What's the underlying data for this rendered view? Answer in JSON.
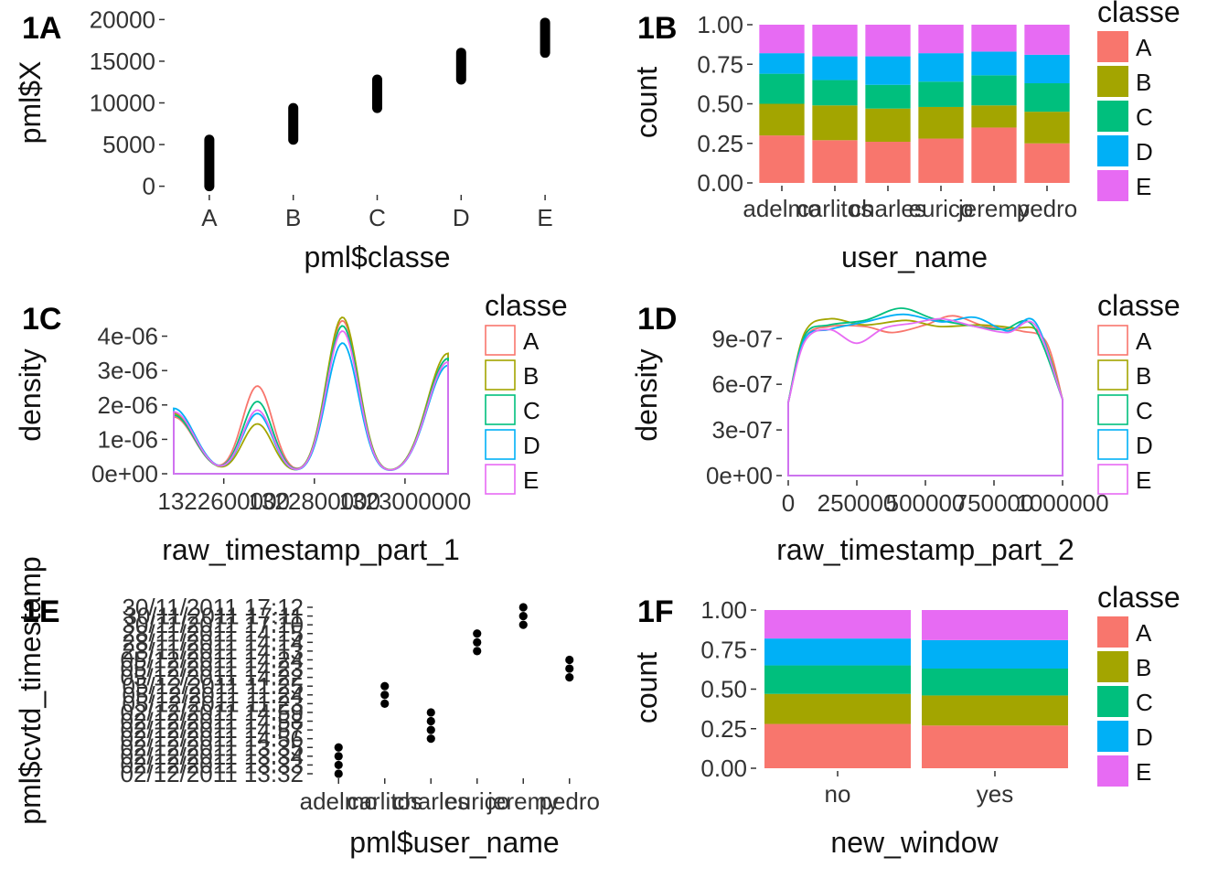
{
  "chart_data": [
    {
      "panel": "1A",
      "type": "scatter",
      "xlabel": "pml$classe",
      "ylabel": "pml$X",
      "categories": [
        "A",
        "B",
        "C",
        "D",
        "E"
      ],
      "yticks": [
        0,
        5000,
        10000,
        15000,
        20000
      ],
      "ylim": [
        -700,
        20700
      ],
      "ranges": [
        {
          "x": "A",
          "ymin": 1,
          "ymax": 5580
        },
        {
          "x": "B",
          "ymin": 5581,
          "ymax": 9377
        },
        {
          "x": "C",
          "ymin": 9378,
          "ymax": 12799
        },
        {
          "x": "D",
          "ymin": 12800,
          "ymax": 16015
        },
        {
          "x": "E",
          "ymin": 16016,
          "ymax": 19622
        }
      ]
    },
    {
      "panel": "1B",
      "type": "bar",
      "stacked": "fill",
      "xlabel": "user_name",
      "ylabel": "count",
      "categories": [
        "adelmo",
        "carlitos",
        "charles",
        "eurico",
        "jeremy",
        "pedro"
      ],
      "yticks": [
        "0.00",
        "0.25",
        "0.50",
        "0.75",
        "1.00"
      ],
      "ylim": [
        0,
        1
      ],
      "legend_title": "classe",
      "series": [
        {
          "name": "A",
          "color": "#F8766D",
          "values": [
            0.3,
            0.27,
            0.26,
            0.28,
            0.35,
            0.25
          ]
        },
        {
          "name": "B",
          "color": "#A3A500",
          "values": [
            0.2,
            0.22,
            0.21,
            0.2,
            0.14,
            0.2
          ]
        },
        {
          "name": "C",
          "color": "#00BF7D",
          "values": [
            0.19,
            0.16,
            0.15,
            0.16,
            0.19,
            0.18
          ]
        },
        {
          "name": "D",
          "color": "#00B0F6",
          "values": [
            0.13,
            0.15,
            0.18,
            0.18,
            0.15,
            0.18
          ]
        },
        {
          "name": "E",
          "color": "#E76BF3",
          "values": [
            0.18,
            0.2,
            0.2,
            0.18,
            0.17,
            0.19
          ]
        }
      ]
    },
    {
      "panel": "1C",
      "type": "line",
      "xlabel": "raw_timestamp_part_1",
      "ylabel": "density",
      "xticks": [
        "1322600000",
        "1322800000",
        "1323000000"
      ],
      "xtick_values": [
        1322600000,
        1322800000,
        1323000000
      ],
      "xlim": [
        1322489605,
        1323095081
      ],
      "yticks": [
        "0e+00",
        "1e-06",
        "2e-06",
        "3e-06",
        "4e-06"
      ],
      "ytick_values": [
        0,
        1e-06,
        2e-06,
        3e-06,
        4e-06
      ],
      "ylim": [
        0,
        4.6e-06
      ],
      "legend_title": "classe",
      "series": [
        {
          "name": "A",
          "color": "#F8766D",
          "left": 1.65e-06,
          "peak1": 2.55e-06,
          "peak2": 4.45e-06,
          "right": 3.35e-06
        },
        {
          "name": "B",
          "color": "#A3A500",
          "left": 1.75e-06,
          "peak1": 1.45e-06,
          "peak2": 4.55e-06,
          "right": 3.5e-06
        },
        {
          "name": "C",
          "color": "#00BF7D",
          "left": 1.7e-06,
          "peak1": 2.1e-06,
          "peak2": 4.3e-06,
          "right": 3.35e-06
        },
        {
          "name": "D",
          "color": "#00B0F6",
          "left": 1.9e-06,
          "peak1": 1.75e-06,
          "peak2": 3.8e-06,
          "right": 3.15e-06
        },
        {
          "name": "E",
          "color": "#E76BF3",
          "left": 1.8e-06,
          "peak1": 1.85e-06,
          "peak2": 4.15e-06,
          "right": 3.25e-06
        }
      ]
    },
    {
      "panel": "1D",
      "type": "line",
      "xlabel": "raw_timestamp_part_2",
      "ylabel": "density",
      "xticks": [
        "0",
        "250000",
        "500000",
        "750000",
        "1000000"
      ],
      "xtick_values": [
        0,
        250000,
        500000,
        750000,
        1000000
      ],
      "xlim": [
        0,
        1000000
      ],
      "yticks": [
        "0e+00",
        "3e-07",
        "6e-07",
        "9e-07"
      ],
      "ytick_values": [
        0,
        3e-07,
        6e-07,
        9e-07
      ],
      "ylim": [
        0,
        1.1e-06
      ],
      "legend_title": "classe",
      "series": [
        {
          "name": "A",
          "color": "#F8766D",
          "points": [
            [
              0,
              4.8e-07
            ],
            [
              60000,
              9e-07
            ],
            [
              150000,
              9.8e-07
            ],
            [
              280000,
              9.8e-07
            ],
            [
              380000,
              9.4e-07
            ],
            [
              500000,
              9.9e-07
            ],
            [
              600000,
              1.05e-06
            ],
            [
              720000,
              9.8e-07
            ],
            [
              850000,
              9.5e-07
            ],
            [
              940000,
              8.8e-07
            ],
            [
              1000000,
              5e-07
            ]
          ]
        },
        {
          "name": "B",
          "color": "#A3A500",
          "points": [
            [
              0,
              4.8e-07
            ],
            [
              60000,
              9.4e-07
            ],
            [
              150000,
              1.03e-06
            ],
            [
              280000,
              9.9e-07
            ],
            [
              430000,
              1.02e-06
            ],
            [
              550000,
              9.8e-07
            ],
            [
              700000,
              9.9e-07
            ],
            [
              820000,
              9.7e-07
            ],
            [
              920000,
              9.3e-07
            ],
            [
              1000000,
              5e-07
            ]
          ]
        },
        {
          "name": "C",
          "color": "#00BF7D",
          "points": [
            [
              0,
              4.8e-07
            ],
            [
              60000,
              9.2e-07
            ],
            [
              150000,
              9.9e-07
            ],
            [
              280000,
              1.02e-06
            ],
            [
              410000,
              1.1e-06
            ],
            [
              530000,
              1.03e-06
            ],
            [
              650000,
              9.9e-07
            ],
            [
              780000,
              9.6e-07
            ],
            [
              890000,
              9.9e-07
            ],
            [
              1000000,
              5e-07
            ]
          ]
        },
        {
          "name": "D",
          "color": "#00B0F6",
          "points": [
            [
              0,
              4.8e-07
            ],
            [
              60000,
              9e-07
            ],
            [
              150000,
              9.6e-07
            ],
            [
              280000,
              1.01e-06
            ],
            [
              420000,
              1.06e-06
            ],
            [
              560000,
              1.01e-06
            ],
            [
              680000,
              1.04e-06
            ],
            [
              800000,
              9.5e-07
            ],
            [
              900000,
              1.01e-06
            ],
            [
              1000000,
              5e-07
            ]
          ]
        },
        {
          "name": "E",
          "color": "#E76BF3",
          "points": [
            [
              0,
              4.8e-07
            ],
            [
              60000,
              8.8e-07
            ],
            [
              150000,
              9.6e-07
            ],
            [
              250000,
              8.7e-07
            ],
            [
              350000,
              9.7e-07
            ],
            [
              450000,
              1e-06
            ],
            [
              560000,
              1.03e-06
            ],
            [
              680000,
              9.8e-07
            ],
            [
              800000,
              9.4e-07
            ],
            [
              900000,
              9.9e-07
            ],
            [
              1000000,
              5e-07
            ]
          ]
        }
      ]
    },
    {
      "panel": "1E",
      "type": "scatter",
      "xlabel": "pml$user_name",
      "ylabel": "pml$cvtd_timestamp",
      "categories": [
        "adelmo",
        "carlitos",
        "charles",
        "eurico",
        "jeremy",
        "pedro"
      ],
      "yticks": [
        "02/12/2011 13:32",
        "02/12/2011 13:33",
        "02/12/2011 13:34",
        "02/12/2011 13:35",
        "02/12/2011 14:56",
        "02/12/2011 14:57",
        "02/12/2011 14:58",
        "02/12/2011 14:59",
        "05/12/2011 11:23",
        "05/12/2011 11:24",
        "05/12/2011 11:25",
        "05/12/2011 14:22",
        "05/12/2011 14:23",
        "05/12/2011 14:24",
        "28/11/2011 14:13",
        "28/11/2011 14:14",
        "28/11/2011 14:15",
        "30/11/2011 17:10",
        "30/11/2011 17:11",
        "30/11/2011 17:12"
      ],
      "points": [
        {
          "x": "adelmo",
          "y": [
            "02/12/2011 13:32",
            "02/12/2011 13:33",
            "02/12/2011 13:34",
            "02/12/2011 13:35"
          ]
        },
        {
          "x": "carlitos",
          "y": [
            "05/12/2011 11:23",
            "05/12/2011 11:24",
            "05/12/2011 11:25"
          ]
        },
        {
          "x": "charles",
          "y": [
            "02/12/2011 14:56",
            "02/12/2011 14:57",
            "02/12/2011 14:58",
            "02/12/2011 14:59"
          ]
        },
        {
          "x": "eurico",
          "y": [
            "28/11/2011 14:13",
            "28/11/2011 14:14",
            "28/11/2011 14:15"
          ]
        },
        {
          "x": "jeremy",
          "y": [
            "30/11/2011 17:10",
            "30/11/2011 17:11",
            "30/11/2011 17:12"
          ]
        },
        {
          "x": "pedro",
          "y": [
            "05/12/2011 14:22",
            "05/12/2011 14:23",
            "05/12/2011 14:24"
          ]
        }
      ]
    },
    {
      "panel": "1F",
      "type": "bar",
      "stacked": "fill",
      "xlabel": "new_window",
      "ylabel": "count",
      "categories": [
        "no",
        "yes"
      ],
      "yticks": [
        "0.00",
        "0.25",
        "0.50",
        "0.75",
        "1.00"
      ],
      "ylim": [
        0,
        1
      ],
      "legend_title": "classe",
      "series": [
        {
          "name": "A",
          "color": "#F8766D",
          "values": [
            0.28,
            0.27
          ]
        },
        {
          "name": "B",
          "color": "#A3A500",
          "values": [
            0.19,
            0.19
          ]
        },
        {
          "name": "C",
          "color": "#00BF7D",
          "values": [
            0.18,
            0.17
          ]
        },
        {
          "name": "D",
          "color": "#00B0F6",
          "values": [
            0.17,
            0.18
          ]
        },
        {
          "name": "E",
          "color": "#E76BF3",
          "values": [
            0.18,
            0.19
          ]
        }
      ]
    }
  ]
}
